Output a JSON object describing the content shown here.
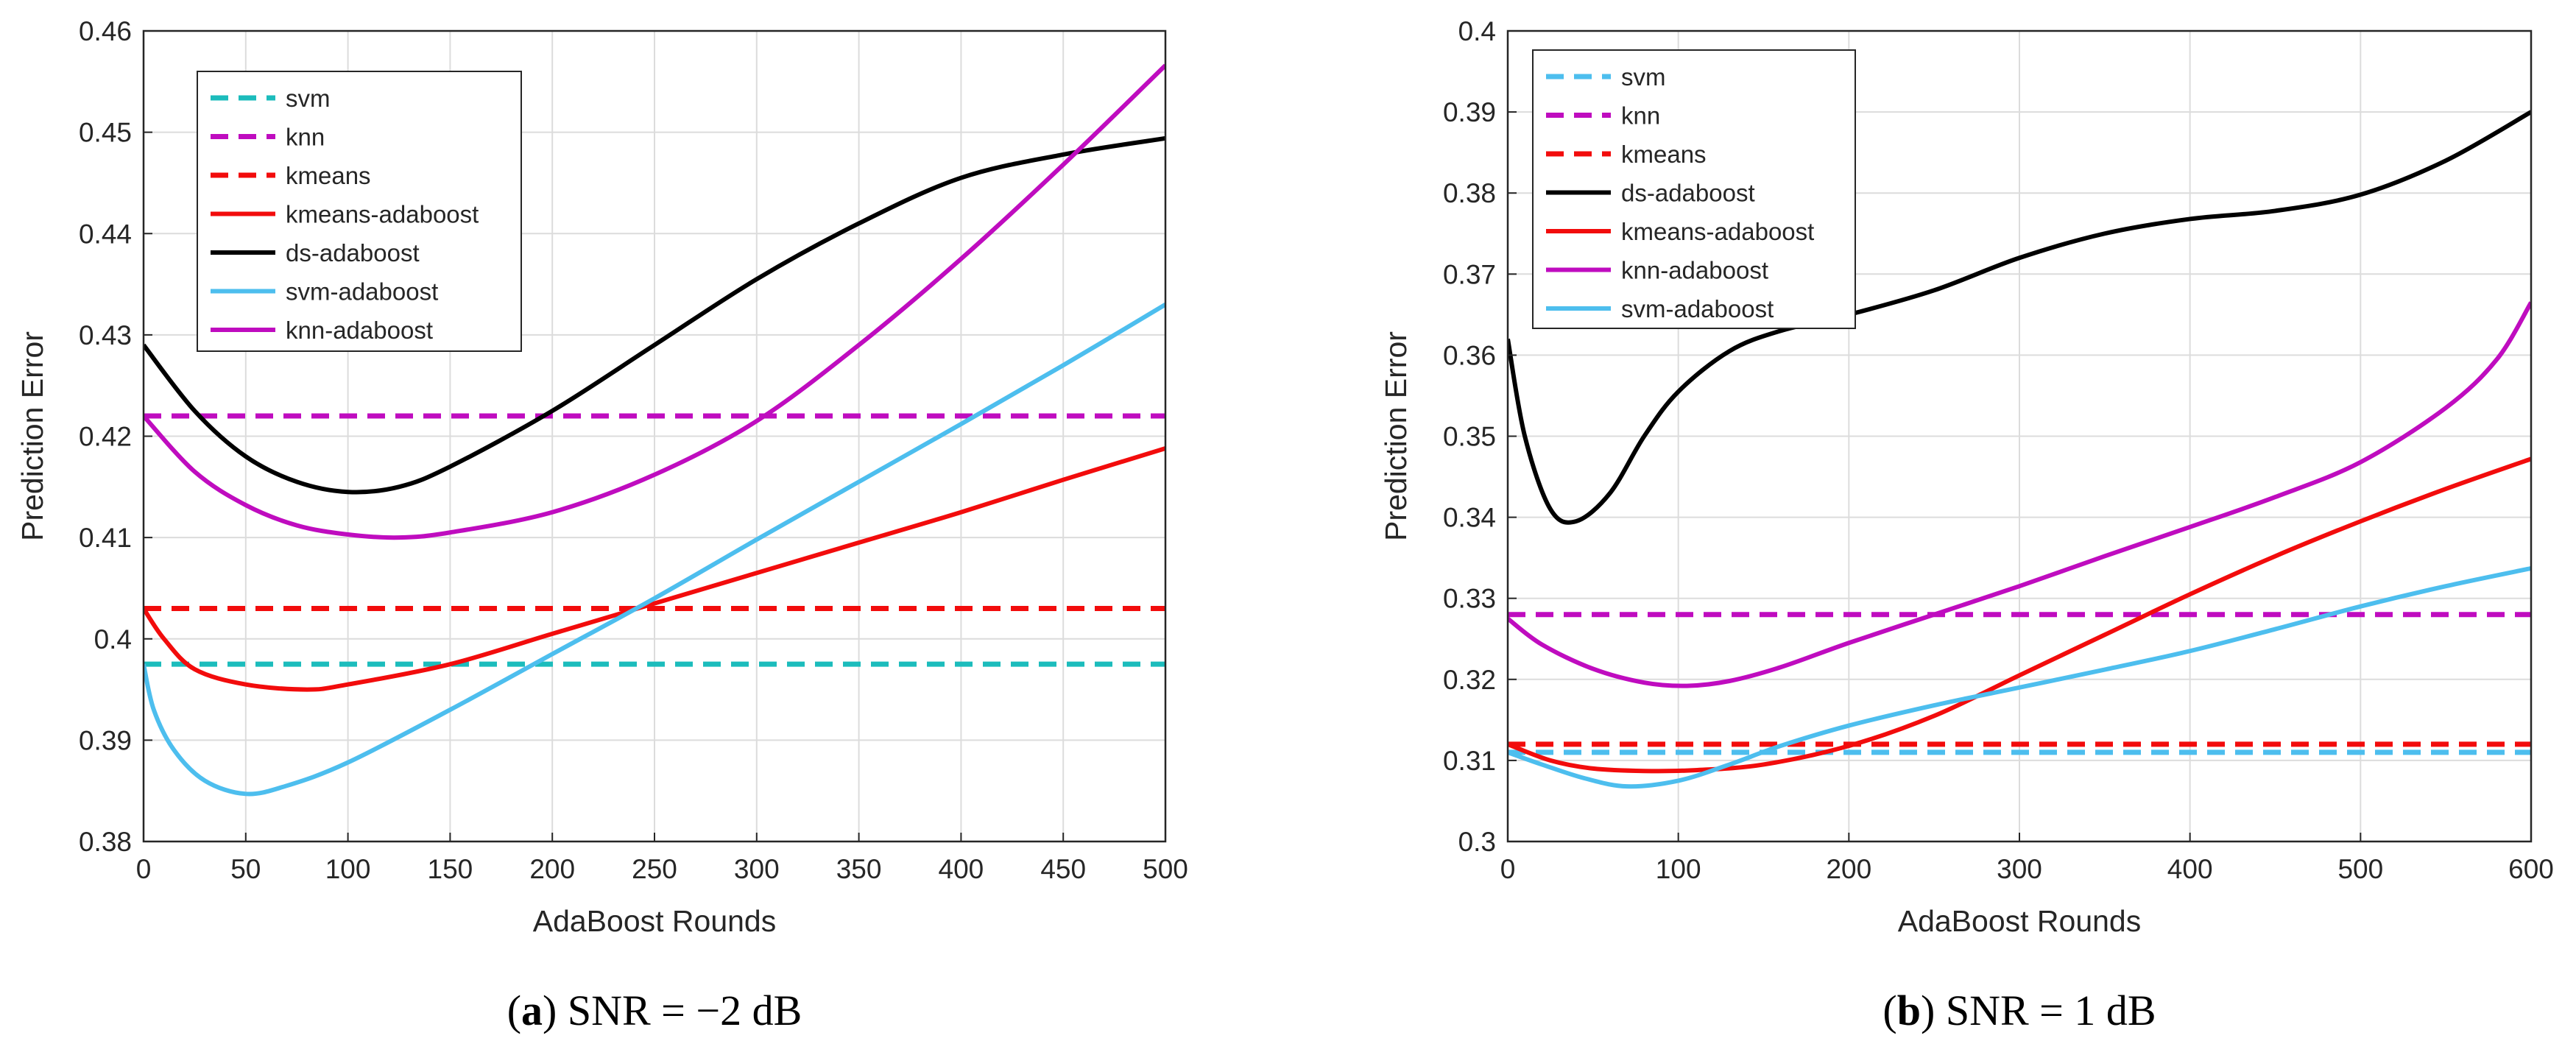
{
  "chart_data": [
    {
      "type": "line",
      "caption": {
        "letter": "a",
        "text": "SNR = −2 dB"
      },
      "xlabel": "AdaBoost Rounds",
      "ylabel": "Prediction Error",
      "xlim": [
        0,
        500
      ],
      "ylim": [
        0.38,
        0.46
      ],
      "xticks": [
        0,
        50,
        100,
        150,
        200,
        250,
        300,
        350,
        400,
        450,
        500
      ],
      "xtick_labels": [
        "0",
        "50",
        "100",
        "150",
        "200",
        "250",
        "300",
        "350",
        "400",
        "450",
        "500"
      ],
      "yticks": [
        0.38,
        0.39,
        0.4,
        0.41,
        0.42,
        0.43,
        0.44,
        0.45,
        0.46
      ],
      "ytick_labels": [
        "0.38",
        "0.39",
        "0.4",
        "0.41",
        "0.42",
        "0.43",
        "0.44",
        "0.45",
        "0.46"
      ],
      "grid": true,
      "legend_position": "top-left",
      "series": [
        {
          "name": "svm",
          "color": "#1cbcbc",
          "style": "dashed",
          "x": [
            0,
            500
          ],
          "y": [
            0.3975,
            0.3975
          ]
        },
        {
          "name": "knn",
          "color": "#bf0cbf",
          "style": "dashed",
          "x": [
            0,
            500
          ],
          "y": [
            0.422,
            0.422
          ]
        },
        {
          "name": "kmeans",
          "color": "#f20c0c",
          "style": "dashed",
          "x": [
            0,
            500
          ],
          "y": [
            0.403,
            0.403
          ]
        },
        {
          "name": "kmeans-adaboost",
          "color": "#f20c0c",
          "style": "solid",
          "x": [
            0,
            10,
            25,
            50,
            80,
            100,
            150,
            200,
            250,
            300,
            350,
            400,
            450,
            500
          ],
          "y": [
            0.403,
            0.4,
            0.397,
            0.3955,
            0.395,
            0.3955,
            0.3975,
            0.4005,
            0.4035,
            0.4065,
            0.4095,
            0.4125,
            0.4157,
            0.4188
          ]
        },
        {
          "name": "ds-adaboost",
          "color": "#000000",
          "style": "solid",
          "x": [
            0,
            25,
            50,
            75,
            100,
            125,
            150,
            200,
            250,
            300,
            350,
            400,
            450,
            500
          ],
          "y": [
            0.429,
            0.4225,
            0.418,
            0.4155,
            0.4145,
            0.415,
            0.417,
            0.4225,
            0.429,
            0.4355,
            0.441,
            0.4455,
            0.4478,
            0.4494
          ]
        },
        {
          "name": "svm-adaboost",
          "color": "#4dbeee",
          "style": "solid",
          "x": [
            0,
            5,
            15,
            30,
            50,
            70,
            100,
            150,
            200,
            250,
            300,
            350,
            400,
            450,
            500
          ],
          "y": [
            0.3975,
            0.393,
            0.389,
            0.386,
            0.3847,
            0.3855,
            0.3878,
            0.393,
            0.3985,
            0.404,
            0.4098,
            0.4155,
            0.4212,
            0.427,
            0.433
          ]
        },
        {
          "name": "knn-adaboost",
          "color": "#bf0cbf",
          "style": "solid",
          "x": [
            0,
            25,
            50,
            75,
            100,
            125,
            150,
            200,
            250,
            300,
            350,
            400,
            450,
            500
          ],
          "y": [
            0.422,
            0.4165,
            0.4132,
            0.4112,
            0.4103,
            0.41,
            0.4105,
            0.4125,
            0.4162,
            0.4215,
            0.429,
            0.4375,
            0.4468,
            0.4566
          ]
        }
      ]
    },
    {
      "type": "line",
      "caption": {
        "letter": "b",
        "text": "SNR = 1 dB"
      },
      "xlabel": "AdaBoost Rounds",
      "ylabel": "Prediction Error",
      "xlim": [
        0,
        600
      ],
      "ylim": [
        0.3,
        0.4
      ],
      "xticks": [
        0,
        100,
        200,
        300,
        400,
        500,
        600
      ],
      "xtick_labels": [
        "0",
        "100",
        "200",
        "300",
        "400",
        "500",
        "600"
      ],
      "yticks": [
        0.3,
        0.31,
        0.32,
        0.33,
        0.34,
        0.35,
        0.36,
        0.37,
        0.38,
        0.39,
        0.4
      ],
      "ytick_labels": [
        "0.3",
        "0.31",
        "0.32",
        "0.33",
        "0.34",
        "0.35",
        "0.36",
        "0.37",
        "0.38",
        "0.39",
        "0.4"
      ],
      "grid": true,
      "legend_position": "top-left",
      "series": [
        {
          "name": "svm",
          "color": "#4dbeee",
          "style": "dashed",
          "x": [
            0,
            600
          ],
          "y": [
            0.311,
            0.311
          ]
        },
        {
          "name": "knn",
          "color": "#bf0cbf",
          "style": "dashed",
          "x": [
            0,
            600
          ],
          "y": [
            0.328,
            0.328
          ]
        },
        {
          "name": "kmeans",
          "color": "#f20c0c",
          "style": "dashed",
          "x": [
            0,
            600
          ],
          "y": [
            0.312,
            0.312
          ]
        },
        {
          "name": "ds-adaboost",
          "color": "#000000",
          "style": "solid",
          "x": [
            0,
            10,
            25,
            40,
            60,
            80,
            100,
            130,
            160,
            200,
            250,
            300,
            350,
            400,
            450,
            500,
            550,
            600
          ],
          "y": [
            0.362,
            0.35,
            0.341,
            0.3395,
            0.343,
            0.35,
            0.3555,
            0.3605,
            0.363,
            0.365,
            0.368,
            0.372,
            0.375,
            0.3768,
            0.3778,
            0.3798,
            0.384,
            0.39
          ]
        },
        {
          "name": "kmeans-adaboost",
          "color": "#f20c0c",
          "style": "solid",
          "x": [
            0,
            25,
            50,
            80,
            110,
            150,
            200,
            250,
            300,
            350,
            400,
            450,
            500,
            550,
            600
          ],
          "y": [
            0.312,
            0.31,
            0.309,
            0.3087,
            0.3088,
            0.3095,
            0.3118,
            0.3155,
            0.3205,
            0.3255,
            0.3305,
            0.3352,
            0.3395,
            0.3435,
            0.3472
          ]
        },
        {
          "name": "knn-adaboost",
          "color": "#bf0cbf",
          "style": "solid",
          "x": [
            0,
            20,
            50,
            80,
            105,
            130,
            160,
            200,
            250,
            300,
            350,
            400,
            450,
            500,
            550,
            580,
            600
          ],
          "y": [
            0.3275,
            0.3243,
            0.3213,
            0.3196,
            0.3192,
            0.3198,
            0.3215,
            0.3245,
            0.328,
            0.3315,
            0.3352,
            0.3388,
            0.3425,
            0.3468,
            0.3535,
            0.3595,
            0.3665
          ]
        },
        {
          "name": "svm-adaboost",
          "color": "#4dbeee",
          "style": "solid",
          "x": [
            0,
            20,
            45,
            70,
            100,
            130,
            160,
            200,
            250,
            300,
            350,
            400,
            450,
            500,
            550,
            600
          ],
          "y": [
            0.311,
            0.3095,
            0.3078,
            0.3068,
            0.3075,
            0.3095,
            0.3118,
            0.3143,
            0.3168,
            0.319,
            0.3212,
            0.3235,
            0.3262,
            0.329,
            0.3315,
            0.3337
          ]
        }
      ]
    }
  ]
}
